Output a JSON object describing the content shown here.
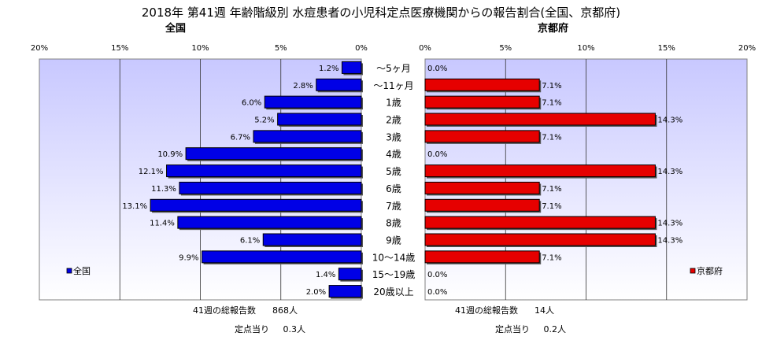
{
  "title": "2018年 第41週 年齢階級別 水痘患者の小児科定点医療機関からの報告割合(全国、京都府)",
  "colors": {
    "national": "#0000e6",
    "kyoto": "#e60000",
    "plot_bg_top": "#c8c8ff",
    "plot_bg_bottom": "#ffffff"
  },
  "chart_data": [
    {
      "type": "bar",
      "orientation": "horizontal",
      "direction": "right-to-left",
      "title": "全国",
      "legend": "全国",
      "legend_position": "bottom-left",
      "xlim": [
        0,
        20
      ],
      "xticks": [
        "20%",
        "15%",
        "10%",
        "5%",
        "0%"
      ],
      "xtick_values": [
        20,
        15,
        10,
        5,
        0
      ],
      "grid": true,
      "categories": [
        "～5ヶ月",
        "～11ヶ月",
        "1歳",
        "2歳",
        "3歳",
        "4歳",
        "5歳",
        "6歳",
        "7歳",
        "8歳",
        "9歳",
        "10～14歳",
        "15～19歳",
        "20歳以上"
      ],
      "values": [
        1.2,
        2.8,
        6.0,
        5.2,
        6.7,
        10.9,
        12.1,
        11.3,
        13.1,
        11.4,
        6.1,
        9.9,
        1.4,
        2.0
      ],
      "labels": [
        "1.2%",
        "2.8%",
        "6.0%",
        "5.2%",
        "6.7%",
        "10.9%",
        "12.1%",
        "11.3%",
        "13.1%",
        "11.4%",
        "6.1%",
        "9.9%",
        "1.4%",
        "2.0%"
      ],
      "footer": {
        "total_label": "41週の総報告数",
        "total_value": "868人",
        "per_label": "定点当り",
        "per_value": "0.3人"
      }
    },
    {
      "type": "bar",
      "orientation": "horizontal",
      "direction": "left-to-right",
      "title": "京都府",
      "legend": "京都府",
      "legend_position": "bottom-right",
      "xlim": [
        0,
        20
      ],
      "xticks": [
        "0%",
        "5%",
        "10%",
        "15%",
        "20%"
      ],
      "xtick_values": [
        0,
        5,
        10,
        15,
        20
      ],
      "grid": true,
      "categories": [
        "～5ヶ月",
        "～11ヶ月",
        "1歳",
        "2歳",
        "3歳",
        "4歳",
        "5歳",
        "6歳",
        "7歳",
        "8歳",
        "9歳",
        "10～14歳",
        "15～19歳",
        "20歳以上"
      ],
      "values": [
        0.0,
        7.1,
        7.1,
        14.3,
        7.1,
        0.0,
        14.3,
        7.1,
        7.1,
        14.3,
        14.3,
        7.1,
        0.0,
        0.0
      ],
      "labels": [
        "0.0%",
        "7.1%",
        "7.1%",
        "14.3%",
        "7.1%",
        "0.0%",
        "14.3%",
        "7.1%",
        "7.1%",
        "14.3%",
        "14.3%",
        "7.1%",
        "0.0%",
        "0.0%"
      ],
      "footer": {
        "total_label": "41週の総報告数",
        "total_value": "14人",
        "per_label": "定点当り",
        "per_value": "0.2人"
      }
    }
  ]
}
